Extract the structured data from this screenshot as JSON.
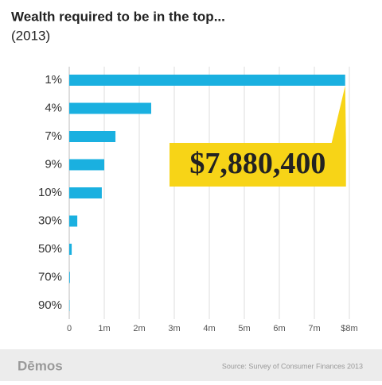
{
  "chart_data": {
    "type": "barh",
    "title": "Wealth required to be in the top...",
    "subtitle": "(2013)",
    "categories": [
      "1%",
      "4%",
      "7%",
      "9%",
      "10%",
      "30%",
      "50%",
      "70%",
      "90%"
    ],
    "values": [
      7880400,
      2340000,
      1320000,
      1000000,
      930000,
      230000,
      70000,
      20000,
      10000
    ],
    "value_labels": [
      "$7,880,400",
      null,
      null,
      null,
      null,
      null,
      null,
      null,
      null
    ],
    "color": "#1ab0e0",
    "label_color": "#f7d417",
    "xlim": [
      0,
      8000000
    ],
    "xticks": [
      0,
      {
        "value": 1000000,
        "label": "1m"
      },
      {
        "value": 2000000,
        "label": "2m"
      },
      {
        "value": 3000000,
        "label": "3m"
      },
      {
        "value": 4000000,
        "label": "4m"
      },
      {
        "value": 5000000,
        "label": "5m"
      },
      {
        "value": 6000000,
        "label": "6m"
      },
      {
        "value": 7000000,
        "label": "7m"
      },
      {
        "value": 8000000,
        "label": "$8m"
      }
    ],
    "grid": true,
    "logo": "Dēmos",
    "source": "Source: Survey of Consumer Finances 2013"
  }
}
